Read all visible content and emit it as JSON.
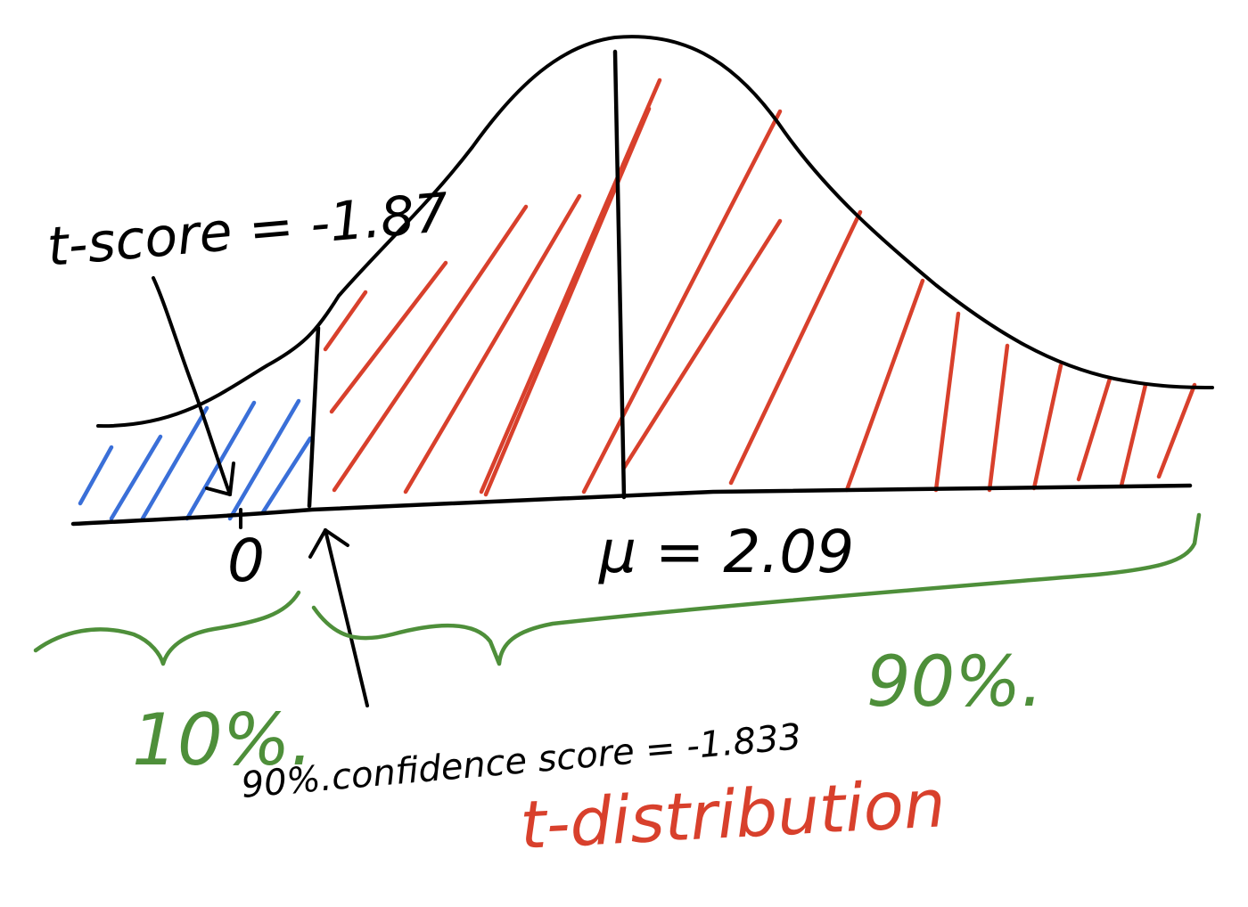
{
  "labels": {
    "t_score": "t-score = -1.87",
    "zero": "0",
    "mu": "μ = 2.09",
    "ten_percent": "10%.",
    "ninety_percent": "90%.",
    "confidence_score": "90%.confidence score = -1.833",
    "distribution": "t-distribution"
  },
  "colors": {
    "ink": "#000000",
    "left_tail_hatch": "#3a6fd8",
    "body_hatch": "#d8402c",
    "brace": "#4e8f3a",
    "distribution_label": "#d8402c",
    "percent_labels": "#4e8f3a"
  }
}
